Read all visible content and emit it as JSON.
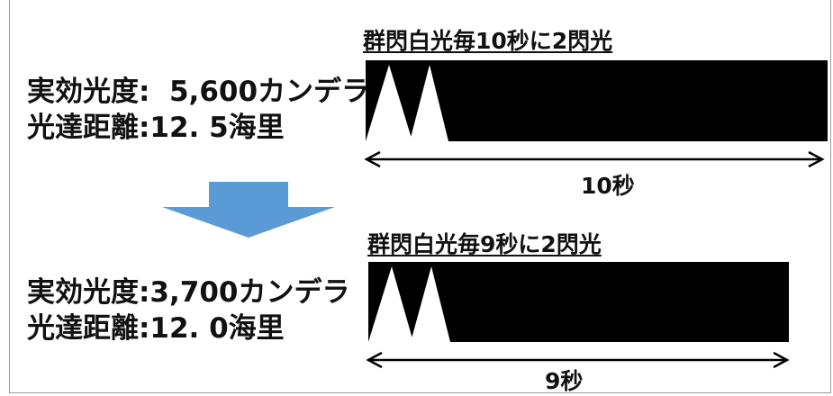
{
  "before": {
    "intensity_label": "実効光度",
    "intensity_value": "5,600カンデラ",
    "range_label": "光達距離",
    "range_value": "12. 5海里",
    "pattern_title": "群閃白光毎10秒に2閃光",
    "period_label": "10秒",
    "period_seconds": 10,
    "flashes": 2
  },
  "after": {
    "intensity_label": "実効光度",
    "intensity_value": "3,700カンデラ",
    "range_label": "光達距離",
    "range_value": "12. 0海里",
    "pattern_title": "群閃白光毎9秒に2閃光",
    "period_label": "9秒",
    "period_seconds": 9,
    "flashes": 2
  },
  "colors": {
    "arrow": "#5b9bd5",
    "timeline": "#000000",
    "flash": "#ffffff"
  }
}
